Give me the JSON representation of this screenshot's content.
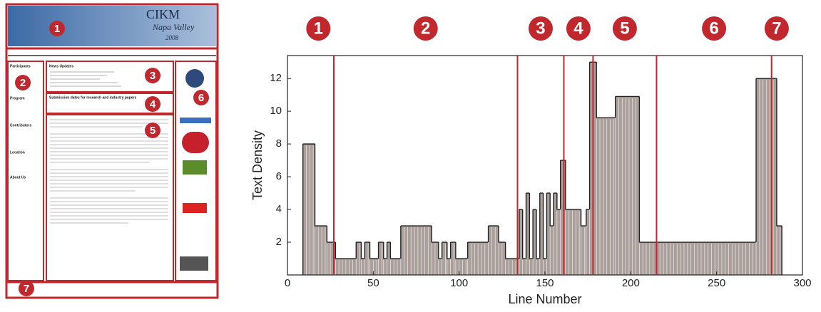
{
  "page_mockup": {
    "title": "CIKM",
    "subtitle": "Napa Valley",
    "year": "2008",
    "sections": [
      "Participants",
      "Program",
      "Contributors",
      "Location",
      "About Us"
    ],
    "news": "News Updates",
    "submission": "Submission dates for research and industry papers",
    "region_labels": [
      "1",
      "2",
      "3",
      "4",
      "5",
      "6",
      "7"
    ]
  },
  "chart_data": {
    "type": "histogram",
    "x_label": "Line Number",
    "y_label": "Text Density",
    "bins": [
      9,
      16,
      23,
      28,
      40,
      43,
      45,
      48,
      53,
      56,
      58,
      60,
      66,
      84,
      88,
      90,
      93,
      95,
      98,
      105,
      117,
      123,
      127,
      135,
      137,
      139,
      141,
      143,
      145,
      147,
      149,
      151,
      153,
      155,
      157,
      159,
      162,
      171,
      174,
      176,
      180,
      191,
      205,
      273,
      285,
      288
    ],
    "values": [
      8,
      3,
      2,
      1,
      2,
      1,
      2,
      1,
      2,
      1,
      2,
      1,
      3,
      2,
      1,
      2,
      1,
      2,
      1,
      2,
      3,
      2,
      1,
      4,
      1,
      5,
      1,
      4,
      1,
      5,
      1,
      5,
      3,
      5,
      4,
      7,
      4,
      3,
      4,
      13,
      9.6,
      10.9,
      2,
      12,
      3
    ],
    "color": "#aa9f9a",
    "dividers": [
      27,
      134,
      161,
      178,
      215,
      282
    ],
    "divider_color": "#c0282d",
    "region_labels": [
      "1",
      "2",
      "3",
      "4",
      "5",
      "6",
      "7"
    ],
    "xlim": [
      0,
      300
    ],
    "ylim": [
      0,
      13.4
    ],
    "xticks": [
      0,
      50,
      100,
      150,
      200,
      250,
      300
    ],
    "yticks": [
      2,
      4,
      6,
      8,
      10,
      12
    ]
  }
}
